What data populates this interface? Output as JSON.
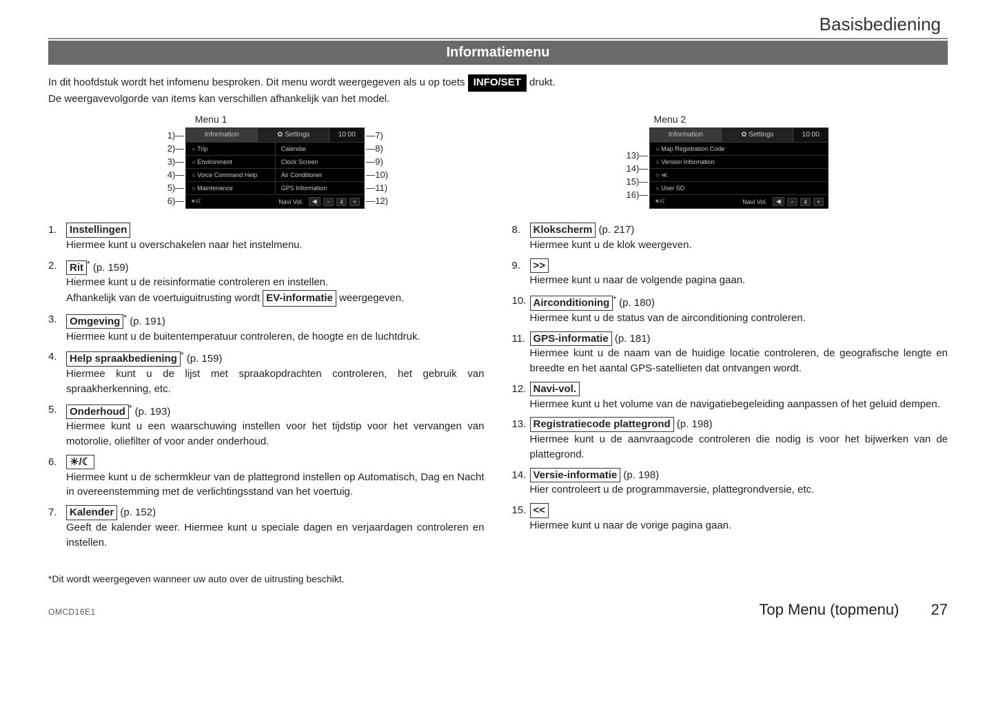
{
  "header": {
    "title": "Basisbediening"
  },
  "banner": {
    "title": "Informatiemenu"
  },
  "intro": {
    "line1_pre": "In dit hoofdstuk wordt het infomenu besproken. Dit menu wordt weergegeven als u op toets ",
    "button": "INFO/SET",
    "line1_post": " drukt.",
    "line2": "De weergavevolgorde van items kan verschillen afhankelijk van het model."
  },
  "menu1": {
    "label": "Menu 1",
    "tabs": {
      "info": "Information",
      "settings": "✿ Settings",
      "time": "10:00"
    },
    "rows": [
      {
        "l": "○ Trip",
        "r": "Calendar"
      },
      {
        "l": "○ Environment",
        "r": "Clock Screen"
      },
      {
        "l": "○ Voice Command Help",
        "r": "Air Conditioner"
      },
      {
        "l": "○ Maintenance",
        "r": "GPS Information"
      }
    ],
    "bottom": {
      "mode": "☀/☾",
      "label": "Navi Vol.",
      "mute": "◀",
      "minus": "−",
      "val": "4",
      "plus": "+"
    },
    "left_callouts": [
      "1)—",
      "2)—",
      "3)—",
      "4)—",
      "5)—",
      "6)—"
    ],
    "right_callouts": [
      "—7)",
      "—8)",
      "—9)",
      "—10)",
      "—11)",
      "—12)"
    ]
  },
  "menu2": {
    "label": "Menu 2",
    "tabs": {
      "info": "Information",
      "settings": "✿ Settings",
      "time": "10:00"
    },
    "rows": [
      {
        "l": "○ Map Registration Code"
      },
      {
        "l": "○ Version Information"
      },
      {
        "l": "○ ≪"
      },
      {
        "l": "○ User SD"
      }
    ],
    "bottom": {
      "mode": "☀/☾",
      "label": "Navi Vol.",
      "mute": "◀",
      "minus": "−",
      "val": "4",
      "plus": "+"
    },
    "left_callouts": [
      "13)—",
      "14)—",
      "15)—",
      "16)—"
    ]
  },
  "defs_left": [
    {
      "n": "1.",
      "label": "Instellingen",
      "pageref": "",
      "star": false,
      "desc": "Hiermee kunt u overschakelen naar het instelmenu."
    },
    {
      "n": "2.",
      "label": "Rit",
      "pageref": "(p. 159)",
      "star": true,
      "desc": "Hiermee kunt u de reisinformatie controleren en instellen.",
      "extra_pre": "Afhankelijk van de voertuiguitrusting wordt ",
      "extra_box": "EV-informatie",
      "extra_post": " weergegeven."
    },
    {
      "n": "3.",
      "label": "Omgeving",
      "pageref": "(p. 191)",
      "star": true,
      "desc": "Hiermee kunt u de buitentemperatuur controleren, de hoogte en de luchtdruk."
    },
    {
      "n": "4.",
      "label": "Help spraakbediening",
      "pageref": "(p. 159)",
      "star": true,
      "desc": "Hiermee kunt u de lijst met spraakopdrachten controleren, het gebruik van spraakherkenning, etc."
    },
    {
      "n": "5.",
      "label": "Onderhoud",
      "pageref": "(p. 193)",
      "star": true,
      "desc": "Hiermee kunt u een waarschuwing instellen voor het tijdstip voor het vervangen van motorolie, oliefilter of voor ander onderhoud."
    },
    {
      "n": "6.",
      "label": "☀/☾",
      "pageref": "",
      "star": false,
      "desc": "Hiermee kunt u de schermkleur van de plattegrond instellen op Automatisch, Dag en Nacht in overeenstemming met de verlichtingsstand van het voertuig."
    },
    {
      "n": "7.",
      "label": "Kalender",
      "pageref": "(p. 152)",
      "star": false,
      "desc": "Geeft de kalender weer. Hiermee kunt u speciale dagen en verjaardagen controleren en instellen."
    }
  ],
  "defs_right": [
    {
      "n": "8.",
      "label": "Klokscherm",
      "pageref": "(p. 217)",
      "star": false,
      "desc": "Hiermee kunt u de klok weergeven."
    },
    {
      "n": "9.",
      "label": ">>",
      "pageref": "",
      "star": false,
      "desc": "Hiermee kunt u naar de volgende pagina gaan."
    },
    {
      "n": "10.",
      "label": "Airconditioning",
      "pageref": "(p. 180)",
      "star": true,
      "desc": "Hiermee kunt u de status van de airconditioning controleren."
    },
    {
      "n": "11.",
      "label": "GPS-informatie",
      "pageref": "(p. 181)",
      "star": false,
      "desc": "Hiermee kunt u de naam van de huidige locatie controleren, de geografische lengte en breedte en het aantal GPS-satellieten dat ontvangen wordt."
    },
    {
      "n": "12.",
      "label": "Navi-vol.",
      "pageref": "",
      "star": false,
      "desc": "Hiermee kunt u het volume van de navigatiebegeleiding aanpassen of het geluid dempen."
    },
    {
      "n": "13.",
      "label": "Registratiecode plattegrond",
      "pageref": "(p. 198)",
      "star": false,
      "desc": "Hiermee kunt u de aanvraagcode controleren die nodig is voor het bijwerken van de plattegrond."
    },
    {
      "n": "14.",
      "label": "Versie-informatie",
      "pageref": "(p. 198)",
      "star": false,
      "desc": "Hier controleert u de programmaversie, plattegrondversie, etc."
    },
    {
      "n": "15.",
      "label": "<<",
      "pageref": "",
      "star": false,
      "desc": "Hiermee kunt u naar de vorige pagina gaan."
    }
  ],
  "footnote": "*Dit wordt weergegeven wanneer uw auto over de uitrusting beschikt.",
  "footer": {
    "code": "OMCD16E1",
    "section": "Top Menu (topmenu)",
    "page": "27"
  }
}
